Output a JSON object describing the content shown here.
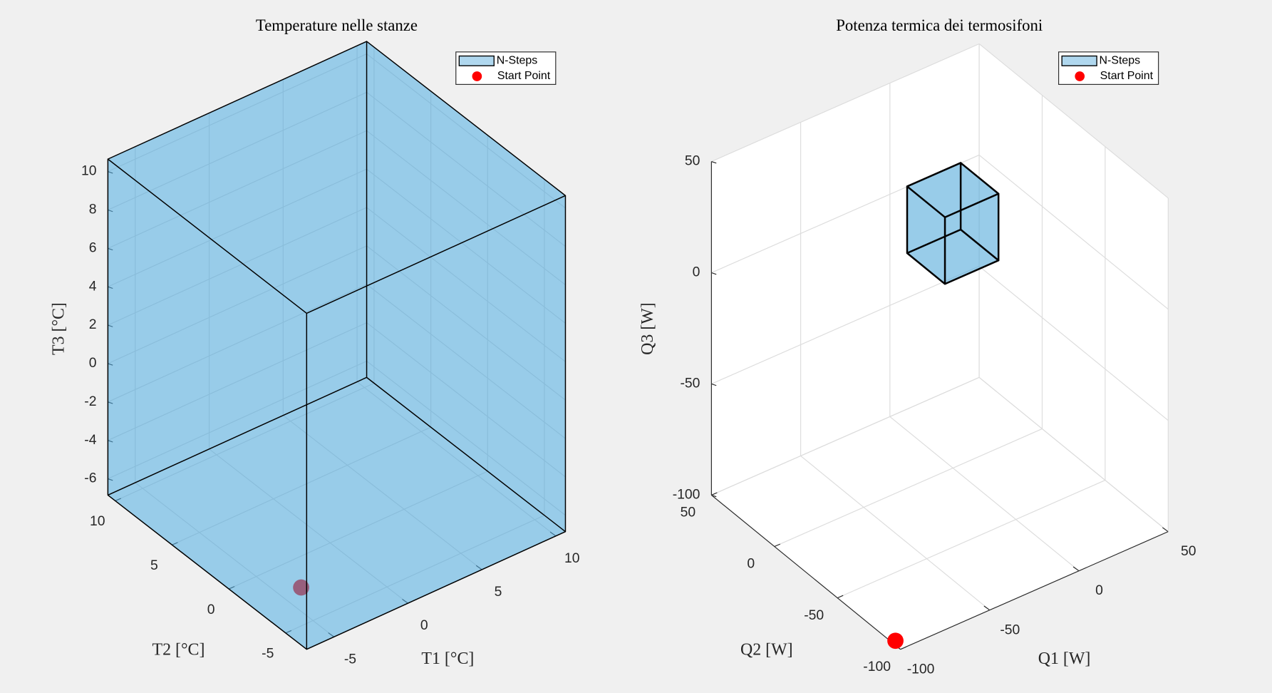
{
  "chart_data": [
    {
      "type": "box3d",
      "title": "Temperature nelle stanze",
      "xlabel": "T1 [°C]",
      "ylabel": "T2 [°C]",
      "zlabel": "T3 [°C]",
      "xlim": [
        -6.85,
        10.65
      ],
      "ylim": [
        -6.85,
        10.65
      ],
      "zlim": [
        -6.85,
        10.65
      ],
      "xticks": [
        -5,
        0,
        5,
        10
      ],
      "yticks": [
        -5,
        0,
        5,
        10
      ],
      "zticks": [
        -6,
        -4,
        -2,
        0,
        2,
        4,
        6,
        8,
        10
      ],
      "grid": true,
      "legend": "upper right",
      "series": [
        {
          "name": "N-Steps",
          "color": "#4da6d9",
          "box": {
            "x": [
              -6.85,
              10.65
            ],
            "y": [
              -6.85,
              10.65
            ],
            "z": [
              -6.85,
              10.65
            ]
          }
        },
        {
          "name": "Start Point",
          "color": "#ff0000",
          "x": [
            -6.8
          ],
          "y": [
            -6.3
          ],
          "z": [
            -3.9
          ]
        }
      ]
    },
    {
      "type": "box3d",
      "title": "Potenza termica dei termosifoni",
      "xlabel": "Q1 [W]",
      "ylabel": "Q2 [W]",
      "zlabel": "Q3 [W]",
      "xlim": [
        -100,
        50
      ],
      "ylim": [
        -100,
        50
      ],
      "zlim": [
        -100,
        50
      ],
      "xticks": [
        -100,
        -50,
        0,
        50
      ],
      "yticks": [
        -100,
        -50,
        0,
        50
      ],
      "zticks": [
        -100,
        -50,
        0,
        50
      ],
      "grid": true,
      "legend": "upper right",
      "series": [
        {
          "name": "N-Steps",
          "color": "#4da6d9",
          "box": {
            "x": [
              -20,
              10
            ],
            "y": [
              -22,
              8
            ],
            "z": [
              0,
              30
            ]
          }
        },
        {
          "name": "Start Point",
          "color": "#ff0000",
          "x": [
            -100
          ],
          "y": [
            -96
          ],
          "z": [
            -98
          ]
        }
      ]
    }
  ]
}
